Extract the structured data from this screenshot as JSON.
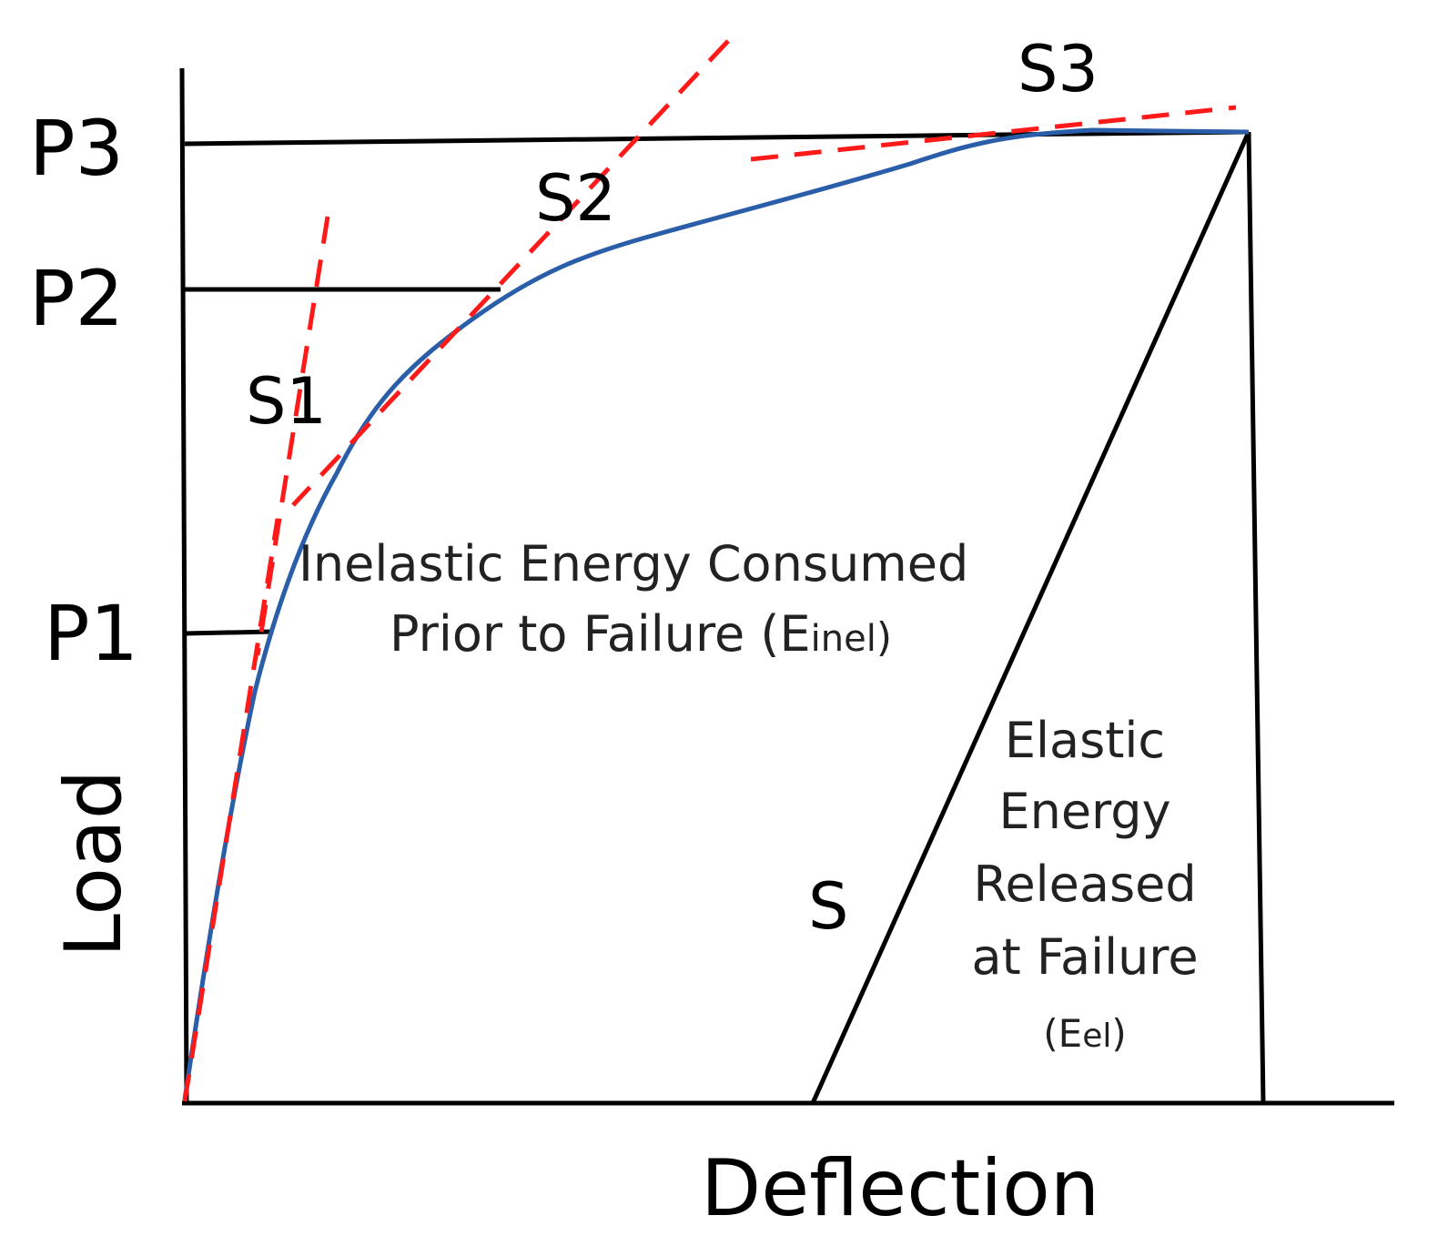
{
  "diagram": {
    "axes": {
      "x_label": "Deflection",
      "y_label": "Load"
    },
    "load_levels": [
      "P1",
      "P2",
      "P3"
    ],
    "slope_labels": [
      "S1",
      "S2",
      "S3"
    ],
    "unloading_slope_label": "S",
    "inelastic_region": {
      "line1": "Inelastic Energy Consumed",
      "line2_main": "Prior to Failure (E",
      "line2_sub": "inel",
      "line2_close": ")"
    },
    "elastic_region": {
      "lines": [
        "Elastic",
        "Energy",
        "Released",
        "at Failure"
      ],
      "formula_open": "(E",
      "formula_sub": "el",
      "formula_close": ")"
    },
    "colors": {
      "curve": "#2a5ea8",
      "tangent_lines": "#ff1a1a",
      "lines": "#000000",
      "background": "#ffffff"
    }
  }
}
